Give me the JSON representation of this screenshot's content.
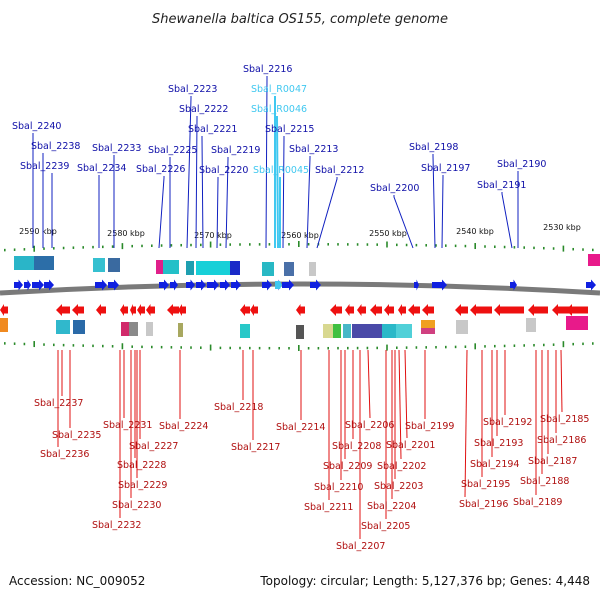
{
  "header": {
    "title": "Shewanella baltica OS155, complete genome"
  },
  "footer": {
    "accession": "Accession: NC_009052",
    "topology": "Topology: circular; Length: 5,127,376 bp; Genes: 4,448"
  },
  "colors": {
    "forward_gene": "#1020e0",
    "reverse_gene": "#ee1010",
    "rna_gene": "#40c8f0",
    "backbone": "#777777",
    "tick": "#2a8a2a"
  },
  "scale": {
    "ticks": [
      "2590 kbp",
      "2580 kbp",
      "2570 kbp",
      "2560 kbp",
      "2550 kbp",
      "2540 kbp",
      "2530 kbp"
    ]
  },
  "top_genes": [
    {
      "label": "Sbal_2240",
      "type": "gene"
    },
    {
      "label": "Sbal_2238",
      "type": "gene"
    },
    {
      "label": "Sbal_2239",
      "type": "gene"
    },
    {
      "label": "Sbal_2234",
      "type": "gene"
    },
    {
      "label": "Sbal_2233",
      "type": "gene"
    },
    {
      "label": "Sbal_2226",
      "type": "gene"
    },
    {
      "label": "Sbal_2225",
      "type": "gene"
    },
    {
      "label": "Sbal_2223",
      "type": "gene"
    },
    {
      "label": "Sbal_2222",
      "type": "gene"
    },
    {
      "label": "Sbal_2221",
      "type": "gene"
    },
    {
      "label": "Sbal_2220",
      "type": "gene"
    },
    {
      "label": "Sbal_2219",
      "type": "gene"
    },
    {
      "label": "Sbal_2216",
      "type": "gene"
    },
    {
      "label": "Sbal_R0047",
      "type": "rna"
    },
    {
      "label": "Sbal_R0046",
      "type": "rna"
    },
    {
      "label": "Sbal_2215",
      "type": "gene"
    },
    {
      "label": "Sbal_R0045",
      "type": "rna"
    },
    {
      "label": "Sbal_2213",
      "type": "gene"
    },
    {
      "label": "Sbal_2212",
      "type": "gene"
    },
    {
      "label": "Sbal_2200",
      "type": "gene"
    },
    {
      "label": "Sbal_2198",
      "type": "gene"
    },
    {
      "label": "Sbal_2197",
      "type": "gene"
    },
    {
      "label": "Sbal_2191",
      "type": "gene"
    },
    {
      "label": "Sbal_2190",
      "type": "gene"
    }
  ],
  "bottom_genes": [
    {
      "label": "Sbal_2237"
    },
    {
      "label": "Sbal_2235"
    },
    {
      "label": "Sbal_2236"
    },
    {
      "label": "Sbal_2231"
    },
    {
      "label": "Sbal_2227"
    },
    {
      "label": "Sbal_2228"
    },
    {
      "label": "Sbal_2229"
    },
    {
      "label": "Sbal_2230"
    },
    {
      "label": "Sbal_2232"
    },
    {
      "label": "Sbal_2224"
    },
    {
      "label": "Sbal_2218"
    },
    {
      "label": "Sbal_2217"
    },
    {
      "label": "Sbal_2214"
    },
    {
      "label": "Sbal_2206"
    },
    {
      "label": "Sbal_2208"
    },
    {
      "label": "Sbal_2209"
    },
    {
      "label": "Sbal_2210"
    },
    {
      "label": "Sbal_2211"
    },
    {
      "label": "Sbal_2207"
    },
    {
      "label": "Sbal_2201"
    },
    {
      "label": "Sbal_2202"
    },
    {
      "label": "Sbal_2203"
    },
    {
      "label": "Sbal_2204"
    },
    {
      "label": "Sbal_2205"
    },
    {
      "label": "Sbal_2199"
    },
    {
      "label": "Sbal_2192"
    },
    {
      "label": "Sbal_2193"
    },
    {
      "label": "Sbal_2194"
    },
    {
      "label": "Sbal_2195"
    },
    {
      "label": "Sbal_2196"
    },
    {
      "label": "Sbal_2185"
    },
    {
      "label": "Sbal_2186"
    },
    {
      "label": "Sbal_2187"
    },
    {
      "label": "Sbal_2188"
    },
    {
      "label": "Sbal_2189"
    }
  ]
}
